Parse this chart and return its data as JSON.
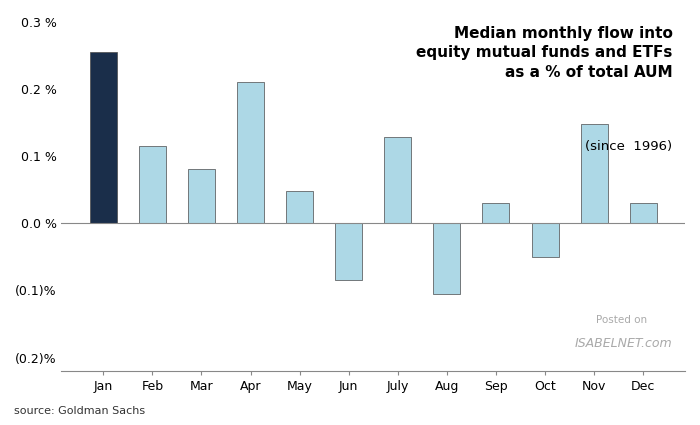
{
  "categories": [
    "Jan",
    "Feb",
    "Mar",
    "Apr",
    "May",
    "Jun",
    "July",
    "Aug",
    "Sep",
    "Oct",
    "Nov",
    "Dec"
  ],
  "values": [
    0.255,
    0.115,
    0.08,
    0.21,
    0.048,
    -0.085,
    0.128,
    -0.105,
    0.03,
    -0.05,
    0.148,
    0.03
  ],
  "bar_colors": [
    "#1a2e4a",
    "#add8e6",
    "#add8e6",
    "#add8e6",
    "#add8e6",
    "#add8e6",
    "#add8e6",
    "#add8e6",
    "#add8e6",
    "#add8e6",
    "#add8e6",
    "#add8e6"
  ],
  "title_line1": "Median monthly flow into",
  "title_line2": "equity mutual funds and ETFs",
  "title_line3": "as a % of total AUM",
  "title_line4": "(since  1996)",
  "source_text": "source: Goldman Sachs",
  "ylim": [
    -0.2,
    0.3
  ],
  "yticks": [
    -0.2,
    -0.1,
    0.0,
    0.1,
    0.2,
    0.3
  ],
  "background_color": "#ffffff",
  "bar_edge_color": "#4a4a4a",
  "watermark_text": "Posted on",
  "watermark_logo": "ISABELNET.com"
}
